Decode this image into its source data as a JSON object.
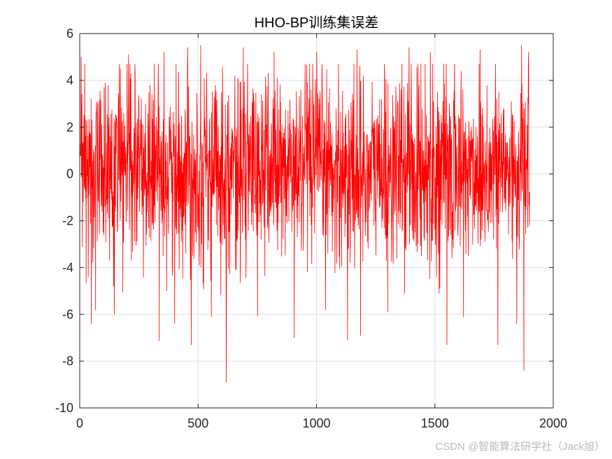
{
  "chart_data": {
    "type": "line",
    "title": "HHO-BP训练集误差",
    "xlabel": "",
    "ylabel": "",
    "xlim": [
      0,
      2000
    ],
    "ylim": [
      -10,
      6
    ],
    "xticks": [
      "0",
      "500",
      "1000",
      "1500",
      "2000"
    ],
    "yticks": [
      "6",
      "4",
      "2",
      "0",
      "-2",
      "-4",
      "-6",
      "-8",
      "-10"
    ],
    "grid": true,
    "series": [
      {
        "color": "#ff0000",
        "n_points": 1900,
        "mean": 0.2,
        "std": 2.0,
        "min": -9.0,
        "max": 5.5,
        "extremes": [
          {
            "x": 5,
            "y": 5.0
          },
          {
            "x": 48,
            "y": -6.4
          },
          {
            "x": 66,
            "y": -5.8
          },
          {
            "x": 145,
            "y": -6.0
          },
          {
            "x": 205,
            "y": 5.1
          },
          {
            "x": 355,
            "y": 5.2
          },
          {
            "x": 400,
            "y": -6.4
          },
          {
            "x": 455,
            "y": 5.4
          },
          {
            "x": 470,
            "y": -7.3
          },
          {
            "x": 510,
            "y": 5.5
          },
          {
            "x": 555,
            "y": -6.1
          },
          {
            "x": 618,
            "y": -8.9
          },
          {
            "x": 690,
            "y": 5.4
          },
          {
            "x": 820,
            "y": 5.2
          },
          {
            "x": 905,
            "y": -7.0
          },
          {
            "x": 1000,
            "y": 5.2
          },
          {
            "x": 1130,
            "y": -7.1
          },
          {
            "x": 1170,
            "y": 5.3
          },
          {
            "x": 1185,
            "y": -6.9
          },
          {
            "x": 1300,
            "y": -5.9
          },
          {
            "x": 1390,
            "y": 5.4
          },
          {
            "x": 1480,
            "y": 5.2
          },
          {
            "x": 1550,
            "y": -7.3
          },
          {
            "x": 1620,
            "y": -6.1
          },
          {
            "x": 1690,
            "y": 5.3
          },
          {
            "x": 1765,
            "y": -7.3
          },
          {
            "x": 1845,
            "y": -6.4
          },
          {
            "x": 1865,
            "y": 5.5
          },
          {
            "x": 1875,
            "y": -8.4
          },
          {
            "x": 1895,
            "y": 5.2
          }
        ]
      }
    ]
  },
  "watermark": "CSDN @智能算法研学社（Jack旭）"
}
